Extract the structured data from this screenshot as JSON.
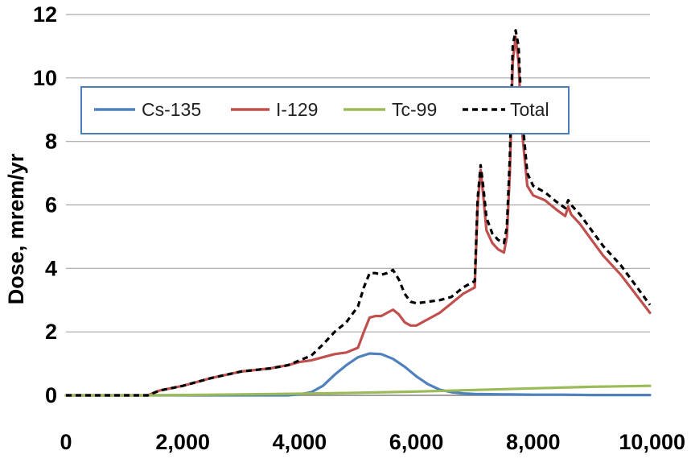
{
  "chart_data": {
    "type": "line",
    "title": "",
    "xlabel": "",
    "ylabel": "Dose, mrem/yr",
    "xlim": [
      0,
      10000
    ],
    "ylim": [
      0,
      12
    ],
    "x_ticks": [
      "0",
      "2,000",
      "4,000",
      "6,000",
      "8,000",
      "10,000"
    ],
    "y_ticks": [
      "0",
      "2",
      "4",
      "6",
      "8",
      "10",
      "12"
    ],
    "grid": "horizontal",
    "legend_position": "top-left",
    "series": [
      {
        "name": "Cs-135",
        "color": "#4f81bd",
        "style": "solid",
        "x": [
          0,
          3800,
          4000,
          4200,
          4400,
          4600,
          4800,
          5000,
          5200,
          5400,
          5600,
          5800,
          6000,
          6200,
          6400,
          6600,
          6800,
          7000,
          7500,
          8000,
          8500,
          9000,
          10000
        ],
        "y": [
          0,
          0,
          0.03,
          0.1,
          0.3,
          0.65,
          0.95,
          1.2,
          1.32,
          1.3,
          1.15,
          0.9,
          0.6,
          0.35,
          0.18,
          0.1,
          0.06,
          0.04,
          0.03,
          0.02,
          0.02,
          0.01,
          0.01
        ]
      },
      {
        "name": "I-129",
        "color": "#c0504d",
        "style": "solid",
        "x": [
          0,
          1400,
          1600,
          2000,
          2500,
          3000,
          3500,
          3800,
          4000,
          4200,
          4400,
          4600,
          4800,
          5000,
          5100,
          5200,
          5300,
          5400,
          5500,
          5600,
          5700,
          5800,
          5900,
          6000,
          6200,
          6400,
          6600,
          6800,
          7000,
          7050,
          7100,
          7150,
          7200,
          7300,
          7400,
          7500,
          7550,
          7600,
          7650,
          7700,
          7750,
          7800,
          7900,
          8000,
          8200,
          8400,
          8550,
          8600,
          8650,
          8800,
          9000,
          9200,
          9500,
          10000
        ],
        "y": [
          0,
          0,
          0.15,
          0.3,
          0.55,
          0.75,
          0.85,
          0.95,
          1.05,
          1.1,
          1.2,
          1.3,
          1.35,
          1.5,
          2.0,
          2.45,
          2.5,
          2.5,
          2.6,
          2.7,
          2.55,
          2.3,
          2.2,
          2.2,
          2.4,
          2.6,
          2.9,
          3.2,
          3.4,
          6.0,
          7.1,
          6.2,
          5.2,
          4.8,
          4.6,
          4.5,
          5.0,
          7.0,
          10.5,
          11.3,
          10.5,
          8.5,
          6.6,
          6.3,
          6.15,
          5.85,
          5.65,
          5.95,
          5.7,
          5.4,
          4.9,
          4.4,
          3.8,
          2.6
        ]
      },
      {
        "name": "Tc-99",
        "color": "#9bbb59",
        "style": "solid",
        "x": [
          0,
          1400,
          2000,
          3000,
          4000,
          5000,
          6000,
          7000,
          8000,
          9000,
          10000
        ],
        "y": [
          0,
          0,
          0.01,
          0.03,
          0.05,
          0.08,
          0.12,
          0.17,
          0.22,
          0.27,
          0.3
        ]
      },
      {
        "name": "Total",
        "color": "#000000",
        "style": "dashed",
        "x": [
          0,
          1400,
          1600,
          2000,
          2500,
          3000,
          3500,
          3800,
          4000,
          4200,
          4400,
          4600,
          4800,
          5000,
          5100,
          5200,
          5300,
          5400,
          5500,
          5600,
          5700,
          5800,
          5900,
          6000,
          6200,
          6400,
          6600,
          6800,
          7000,
          7050,
          7100,
          7150,
          7200,
          7300,
          7400,
          7500,
          7550,
          7600,
          7650,
          7700,
          7750,
          7800,
          7900,
          8000,
          8200,
          8400,
          8550,
          8600,
          8650,
          8800,
          9000,
          9200,
          9500,
          10000
        ],
        "y": [
          0,
          0,
          0.15,
          0.3,
          0.55,
          0.75,
          0.85,
          0.95,
          1.1,
          1.25,
          1.6,
          2.0,
          2.3,
          2.8,
          3.4,
          3.85,
          3.85,
          3.8,
          3.85,
          3.95,
          3.65,
          3.2,
          2.95,
          2.9,
          2.95,
          3.0,
          3.1,
          3.4,
          3.6,
          6.2,
          7.25,
          6.5,
          5.6,
          5.1,
          4.9,
          4.8,
          5.3,
          7.5,
          11.0,
          11.5,
          11.0,
          9.0,
          7.0,
          6.6,
          6.4,
          6.1,
          5.9,
          6.15,
          6.0,
          5.7,
          5.2,
          4.7,
          4.1,
          2.85
        ]
      }
    ]
  }
}
